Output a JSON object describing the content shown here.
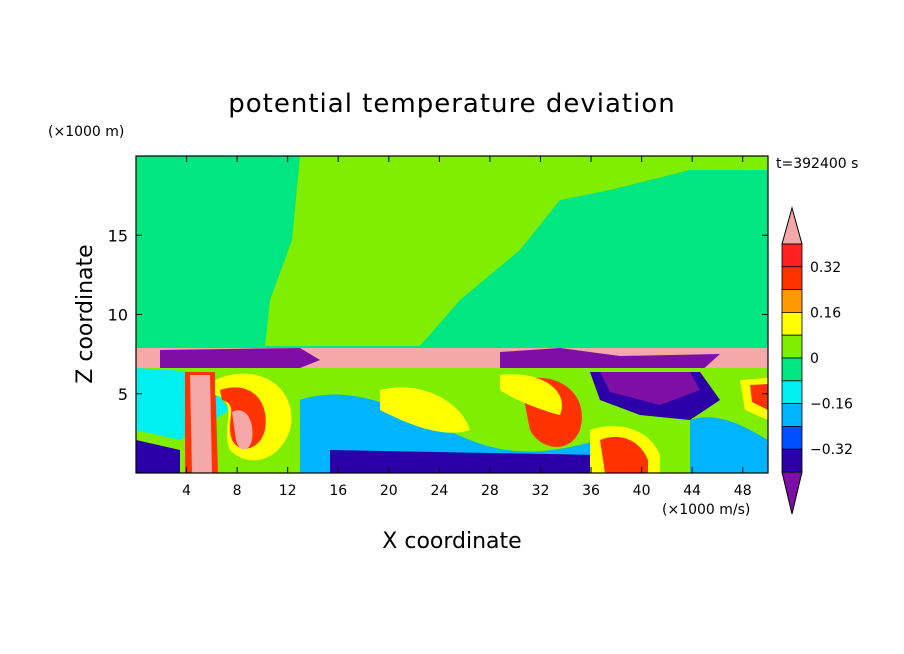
{
  "chart_data": {
    "type": "heatmap",
    "title": "potential temperature deviation",
    "xlabel": "X coordinate",
    "ylabel": "Z coordinate",
    "x_unit": "(×1000 m/s)",
    "y_unit": "(×1000 m)",
    "time_label": "t=392400 s",
    "xlim": [
      0,
      50
    ],
    "ylim": [
      0,
      20
    ],
    "x_ticks": [
      4,
      8,
      12,
      16,
      20,
      24,
      28,
      32,
      36,
      40,
      44,
      48
    ],
    "y_ticks": [
      5,
      10,
      15
    ],
    "grid": false,
    "legend_position": "right",
    "colorbar": {
      "levels": [
        -0.4,
        -0.32,
        -0.24,
        -0.16,
        -0.08,
        0,
        0.08,
        0.16,
        0.24,
        0.32,
        0.4
      ],
      "tick_labels": [
        "0.32",
        "0.16",
        "0",
        "−0.16",
        "−0.32"
      ],
      "colors": [
        "#7d0fa6",
        "#2b00a8",
        "#0050ff",
        "#00b4ff",
        "#00f0f0",
        "#00e680",
        "#80ee00",
        "#ffff00",
        "#ff9900",
        "#ff3300",
        "#ff2020",
        "#f5a8a8"
      ]
    },
    "bands": [
      {
        "z_range": [
          8,
          20
        ],
        "description_value": 0.02
      },
      {
        "z_range": [
          7,
          8
        ],
        "description_value": 0.4
      },
      {
        "z_range": [
          6.2,
          7.6
        ],
        "description_value": -0.4
      },
      {
        "z_range": [
          0,
          6.5
        ],
        "description_value": "mixed -0.4..0.4"
      }
    ]
  }
}
